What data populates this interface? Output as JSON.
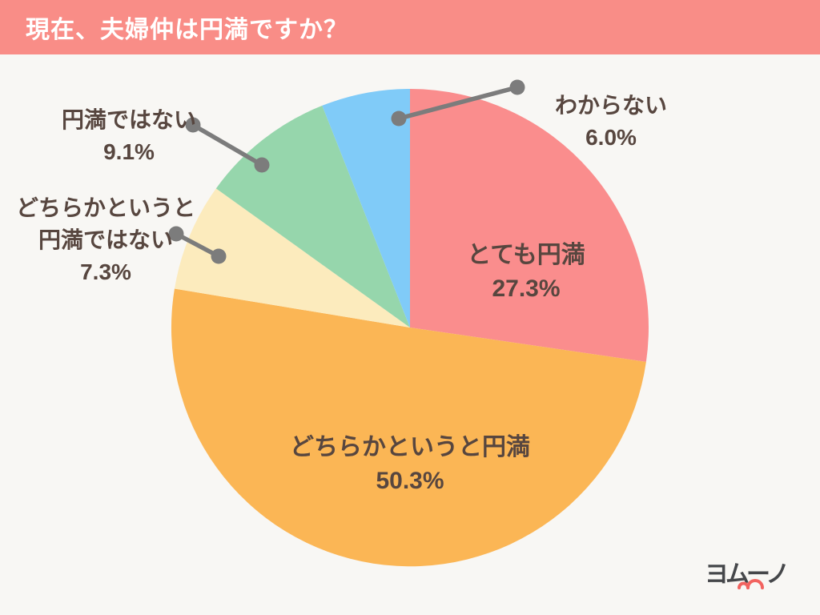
{
  "header": {
    "title": "現在、夫婦仲は円満ですか？",
    "bg_color": "#F98D87",
    "text_color": "#FFFFFF"
  },
  "chart_data": {
    "type": "pie",
    "title": "現在、夫婦仲は円満ですか？",
    "direction": "clockwise",
    "start_angle_deg": 0,
    "total_pct": 100.0,
    "background_color": "#F8F7F4",
    "label_text_color": "#57463F",
    "leader_line_color": "#7C7C7C",
    "legend": "none (direct labels with leader lines)",
    "slices": [
      {
        "label": "とても円満",
        "value": 27.3,
        "pct_label": "27.3%",
        "color": "#FA8D8D",
        "label_placement": "inside"
      },
      {
        "label": "どちらかというと円満",
        "value": 50.3,
        "pct_label": "50.3%",
        "color": "#FBB655",
        "label_placement": "inside"
      },
      {
        "label": "どちらかというと\n円満ではない",
        "value": 7.3,
        "pct_label": "7.3%",
        "color": "#FCEBBD",
        "label_placement": "outside-left"
      },
      {
        "label": "円満ではない",
        "value": 9.1,
        "pct_label": "9.1%",
        "color": "#96D6AC",
        "label_placement": "outside-top-left"
      },
      {
        "label": "わからない",
        "value": 6.0,
        "pct_label": "6.0%",
        "color": "#80CBF8",
        "label_placement": "outside-top-right"
      }
    ]
  },
  "footer": {
    "logo_text": "ヨムーノ"
  }
}
